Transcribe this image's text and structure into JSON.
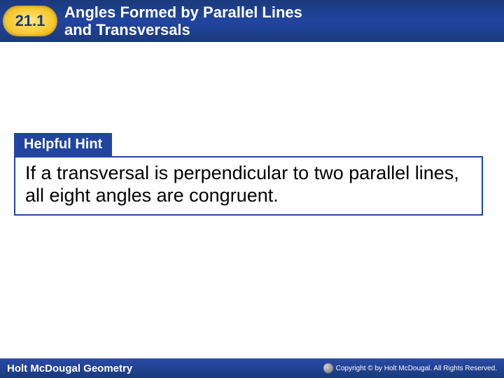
{
  "header": {
    "section_number": "21.1",
    "title_line1": "Angles Formed by Parallel Lines",
    "title_line2": "and Transversals",
    "background_color": "#1a3a7a",
    "badge_color": "#f5c830",
    "text_color": "#ffffff"
  },
  "hint": {
    "label": "Helpful Hint",
    "body": "If a transversal is perpendicular to two parallel lines, all eight angles are congruent.",
    "label_bg": "#2145a0",
    "label_color": "#ffffff",
    "border_color": "#2145a0",
    "body_fontsize": 27
  },
  "footer": {
    "left_text": "Holt McDougal Geometry",
    "right_text": "Copyright © by Holt McDougal. All Rights Reserved.",
    "background_color": "#1a3a7a",
    "text_color": "#ffffff"
  }
}
